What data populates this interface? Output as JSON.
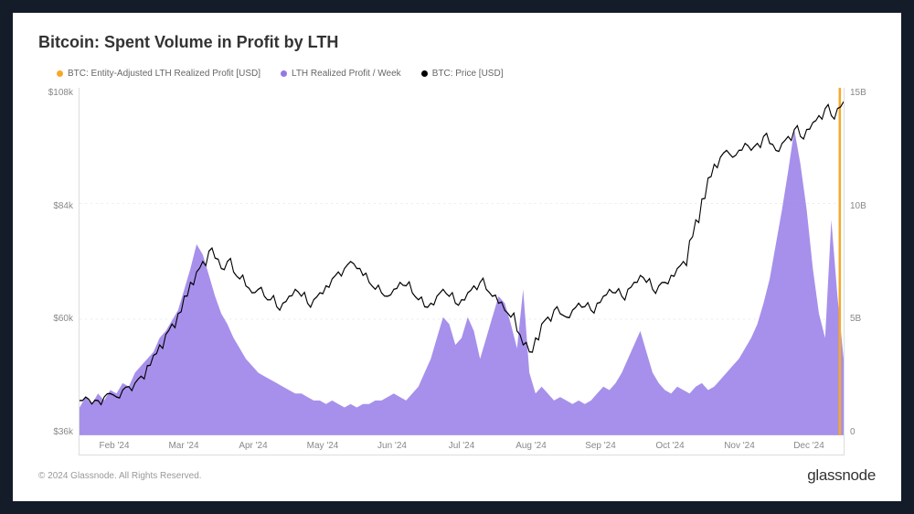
{
  "chart": {
    "title": "Bitcoin: Spent Volume in Profit by LTH",
    "background_color": "#ffffff",
    "frame_background": "#141b29",
    "title_fontsize": 18,
    "title_color": "#333333",
    "legend": [
      {
        "label": "BTC: Entity-Adjusted LTH Realized Profit [USD]",
        "color": "#f9a825"
      },
      {
        "label": "LTH Realized Profit / Week",
        "color": "#9478e6"
      },
      {
        "label": "BTC: Price [USD]",
        "color": "#000000"
      }
    ],
    "y_left": {
      "label_color": "#888888",
      "fontsize": 10,
      "ticks": [
        "$108k",
        "$84k",
        "$60k",
        "$36k"
      ],
      "min": 36000,
      "max": 108000
    },
    "y_right": {
      "label_color": "#888888",
      "fontsize": 10,
      "ticks": [
        "15B",
        "10B",
        "5B",
        "0"
      ],
      "min": 0,
      "max": 16000000000
    },
    "x_axis": {
      "labels": [
        "Feb '24",
        "Mar '24",
        "Apr '24",
        "May '24",
        "Jun '24",
        "Jul '24",
        "Aug '24",
        "Sep '24",
        "Oct '24",
        "Nov '24",
        "Dec '24"
      ],
      "fontsize": 10,
      "color": "#888888"
    },
    "area_series": {
      "color": "#9478e6",
      "opacity": 0.82,
      "values_norm": [
        0.08,
        0.11,
        0.09,
        0.12,
        0.1,
        0.13,
        0.12,
        0.15,
        0.14,
        0.18,
        0.2,
        0.22,
        0.24,
        0.28,
        0.3,
        0.33,
        0.36,
        0.42,
        0.48,
        0.55,
        0.52,
        0.46,
        0.4,
        0.35,
        0.32,
        0.28,
        0.25,
        0.22,
        0.2,
        0.18,
        0.17,
        0.16,
        0.15,
        0.14,
        0.13,
        0.12,
        0.12,
        0.11,
        0.1,
        0.1,
        0.09,
        0.1,
        0.09,
        0.08,
        0.09,
        0.08,
        0.09,
        0.09,
        0.1,
        0.1,
        0.11,
        0.12,
        0.11,
        0.1,
        0.12,
        0.14,
        0.18,
        0.22,
        0.28,
        0.34,
        0.32,
        0.26,
        0.28,
        0.34,
        0.3,
        0.22,
        0.28,
        0.34,
        0.4,
        0.38,
        0.32,
        0.25,
        0.42,
        0.18,
        0.12,
        0.14,
        0.12,
        0.1,
        0.11,
        0.1,
        0.09,
        0.1,
        0.09,
        0.1,
        0.12,
        0.14,
        0.13,
        0.15,
        0.18,
        0.22,
        0.26,
        0.3,
        0.24,
        0.18,
        0.15,
        0.13,
        0.12,
        0.14,
        0.13,
        0.12,
        0.14,
        0.15,
        0.13,
        0.14,
        0.16,
        0.18,
        0.2,
        0.22,
        0.25,
        0.28,
        0.32,
        0.38,
        0.45,
        0.55,
        0.65,
        0.76,
        0.88,
        0.78,
        0.65,
        0.48,
        0.35,
        0.28,
        0.62,
        0.4,
        0.22
      ]
    },
    "price_series": {
      "color": "#000000",
      "width": 1.3,
      "values_norm": [
        0.1,
        0.11,
        0.09,
        0.1,
        0.11,
        0.12,
        0.11,
        0.13,
        0.14,
        0.15,
        0.17,
        0.2,
        0.23,
        0.26,
        0.29,
        0.32,
        0.35,
        0.4,
        0.44,
        0.47,
        0.5,
        0.53,
        0.51,
        0.48,
        0.5,
        0.47,
        0.45,
        0.43,
        0.41,
        0.42,
        0.4,
        0.39,
        0.37,
        0.38,
        0.4,
        0.42,
        0.4,
        0.38,
        0.39,
        0.41,
        0.43,
        0.45,
        0.47,
        0.48,
        0.5,
        0.48,
        0.46,
        0.44,
        0.42,
        0.41,
        0.4,
        0.42,
        0.44,
        0.43,
        0.41,
        0.39,
        0.37,
        0.38,
        0.4,
        0.42,
        0.4,
        0.38,
        0.39,
        0.41,
        0.43,
        0.44,
        0.42,
        0.4,
        0.38,
        0.36,
        0.34,
        0.3,
        0.26,
        0.24,
        0.28,
        0.32,
        0.34,
        0.36,
        0.35,
        0.34,
        0.36,
        0.38,
        0.37,
        0.36,
        0.38,
        0.4,
        0.42,
        0.41,
        0.4,
        0.42,
        0.44,
        0.46,
        0.44,
        0.42,
        0.43,
        0.44,
        0.46,
        0.48,
        0.5,
        0.56,
        0.62,
        0.68,
        0.74,
        0.78,
        0.8,
        0.82,
        0.8,
        0.82,
        0.84,
        0.82,
        0.84,
        0.86,
        0.84,
        0.82,
        0.84,
        0.86,
        0.88,
        0.86,
        0.88,
        0.9,
        0.92,
        0.94,
        0.92,
        0.94,
        0.96
      ]
    },
    "orange_spike": {
      "color": "#f9a825",
      "x_norm": 0.995,
      "height_norm": 1.0
    }
  },
  "footer": {
    "copyright": "© 2024 Glassnode. All Rights Reserved.",
    "logo_text": "glassnode"
  }
}
